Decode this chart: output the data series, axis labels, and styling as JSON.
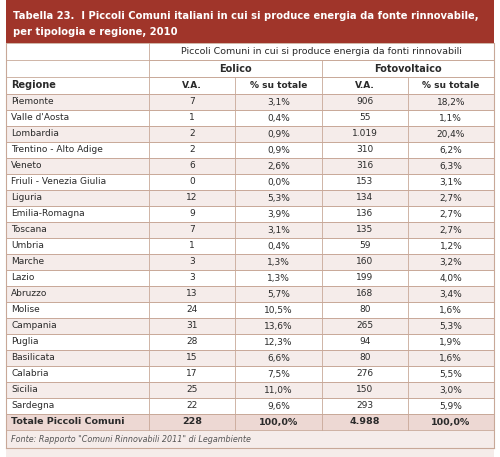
{
  "title_line1": "Tabella 23.  I Piccoli Comuni italiani in cui si produce energia da fonte rinnovabile,",
  "title_line2": "per tipologia e regione, 2010",
  "header_bg": "#A0352A",
  "header_text_color": "#FFFFFF",
  "subheader_text": "Piccoli Comuni in cui si produce energia da fonti rinnovabili",
  "col_group1": "Eolico",
  "col_group2": "Fotovoltaico",
  "col_headers": [
    "V.A.",
    "% su totale",
    "V.A.",
    "% su totale"
  ],
  "row_label_header": "Regione",
  "regions": [
    "Piemonte",
    "Valle d'Aosta",
    "Lombardia",
    "Trentino - Alto Adige",
    "Veneto",
    "Friuli - Venezia Giulia",
    "Liguria",
    "Emilia-Romagna",
    "Toscana",
    "Umbria",
    "Marche",
    "Lazio",
    "Abruzzo",
    "Molise",
    "Campania",
    "Puglia",
    "Basilicata",
    "Calabria",
    "Sicilia",
    "Sardegna",
    "Totale Piccoli Comuni"
  ],
  "eolico_va": [
    "7",
    "1",
    "2",
    "2",
    "6",
    "0",
    "12",
    "9",
    "7",
    "1",
    "3",
    "3",
    "13",
    "24",
    "31",
    "28",
    "15",
    "17",
    "25",
    "22",
    "228"
  ],
  "eolico_pct": [
    "3,1%",
    "0,4%",
    "0,9%",
    "0,9%",
    "2,6%",
    "0,0%",
    "5,3%",
    "3,9%",
    "3,1%",
    "0,4%",
    "1,3%",
    "1,3%",
    "5,7%",
    "10,5%",
    "13,6%",
    "12,3%",
    "6,6%",
    "7,5%",
    "11,0%",
    "9,6%",
    "100,0%"
  ],
  "foto_va": [
    "906",
    "55",
    "1.019",
    "310",
    "316",
    "153",
    "134",
    "136",
    "135",
    "59",
    "160",
    "199",
    "168",
    "80",
    "265",
    "94",
    "80",
    "276",
    "150",
    "293",
    "4.988"
  ],
  "foto_pct": [
    "18,2%",
    "1,1%",
    "20,4%",
    "6,2%",
    "6,3%",
    "3,1%",
    "2,7%",
    "2,7%",
    "2,7%",
    "1,2%",
    "3,2%",
    "4,0%",
    "3,4%",
    "1,6%",
    "5,3%",
    "1,9%",
    "1,6%",
    "5,5%",
    "3,0%",
    "5,9%",
    "100,0%"
  ],
  "footer": "Fonte: Rapporto \"Comuni Rinnovabili 2011\" di Legambiente",
  "row_bg_odd": "#F5ECEA",
  "row_bg_even": "#FFFFFF",
  "row_bg_total": "#EDD8D3",
  "row_bg_header": "#F5ECEA",
  "border_color": "#C8A898",
  "text_color": "#2A2A2A",
  "bg_color": "#F5ECEA"
}
